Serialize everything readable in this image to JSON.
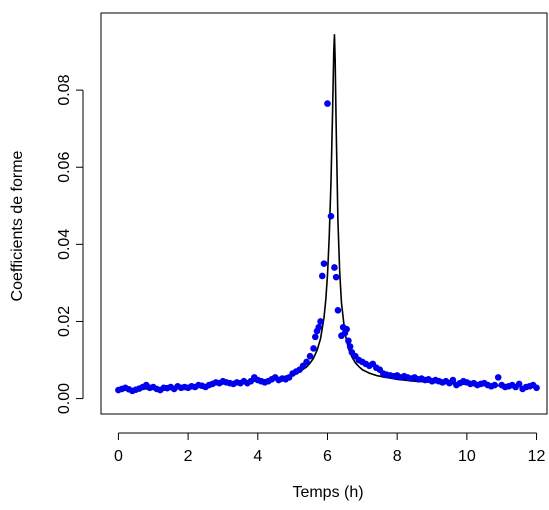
{
  "chart_data": {
    "type": "scatter",
    "title": "",
    "xlabel": "Temps (h)",
    "ylabel": "Coefficients de forme",
    "xlim": [
      -0.5,
      12.3
    ],
    "ylim": [
      -0.004,
      0.1
    ],
    "xticks": [
      0,
      2,
      4,
      6,
      8,
      10,
      12
    ],
    "xtick_labels": [
      "0",
      "2",
      "4",
      "6",
      "8",
      "10",
      "12"
    ],
    "yticks": [
      0.0,
      0.02,
      0.04,
      0.06,
      0.08
    ],
    "ytick_labels": [
      "0.00",
      "0.02",
      "0.04",
      "0.06",
      "0.08"
    ],
    "grid": false,
    "legend": "none",
    "colors": {
      "points": "#0000ee",
      "curve": "#000000",
      "axes": "#000000"
    },
    "series": [
      {
        "kind": "points",
        "x": [
          0.0,
          0.1,
          0.2,
          0.3,
          0.4,
          0.5,
          0.6,
          0.7,
          0.8,
          0.9,
          1.0,
          1.1,
          1.2,
          1.3,
          1.4,
          1.5,
          1.6,
          1.7,
          1.8,
          1.9,
          2.0,
          2.1,
          2.2,
          2.3,
          2.4,
          2.5,
          2.6,
          2.7,
          2.8,
          2.9,
          3.0,
          3.1,
          3.2,
          3.3,
          3.4,
          3.5,
          3.6,
          3.7,
          3.8,
          3.9,
          4.0,
          4.1,
          4.2,
          4.3,
          4.4,
          4.5,
          4.6,
          4.7,
          4.8,
          4.9,
          5.0,
          5.1,
          5.2,
          5.3,
          5.4,
          5.5,
          5.6,
          5.65,
          5.7,
          5.75,
          5.8,
          5.85,
          5.9,
          6.0,
          6.1,
          6.2,
          6.25,
          6.3,
          6.4,
          6.45,
          6.5,
          6.55,
          6.6,
          6.65,
          6.7,
          6.8,
          6.9,
          7.0,
          7.1,
          7.2,
          7.3,
          7.4,
          7.5,
          7.6,
          7.7,
          7.8,
          7.9,
          8.0,
          8.1,
          8.2,
          8.3,
          8.4,
          8.5,
          8.6,
          8.7,
          8.8,
          8.9,
          9.0,
          9.1,
          9.2,
          9.3,
          9.4,
          9.5,
          9.6,
          9.7,
          9.8,
          9.9,
          10.0,
          10.1,
          10.2,
          10.3,
          10.4,
          10.5,
          10.6,
          10.7,
          10.8,
          10.9,
          11.0,
          11.1,
          11.2,
          11.3,
          11.4,
          11.5,
          11.6,
          11.7,
          11.8,
          11.9,
          12.0
        ],
        "y": [
          0.0022,
          0.0025,
          0.0028,
          0.0024,
          0.002,
          0.0023,
          0.0026,
          0.003,
          0.0035,
          0.0028,
          0.003,
          0.0025,
          0.0022,
          0.0028,
          0.0027,
          0.003,
          0.0025,
          0.0032,
          0.0028,
          0.003,
          0.0028,
          0.0032,
          0.003,
          0.0035,
          0.0033,
          0.003,
          0.0035,
          0.0038,
          0.0042,
          0.004,
          0.0045,
          0.0042,
          0.004,
          0.0038,
          0.0042,
          0.004,
          0.0045,
          0.004,
          0.0045,
          0.0055,
          0.0048,
          0.0045,
          0.0042,
          0.0045,
          0.005,
          0.0055,
          0.0048,
          0.0052,
          0.005,
          0.0055,
          0.0065,
          0.007,
          0.0075,
          0.0085,
          0.0095,
          0.011,
          0.013,
          0.016,
          0.0175,
          0.0185,
          0.02,
          0.0318,
          0.035,
          0.0765,
          0.0473,
          0.034,
          0.0315,
          0.0229,
          0.0163,
          0.0185,
          0.017,
          0.018,
          0.015,
          0.0135,
          0.012,
          0.011,
          0.01,
          0.0095,
          0.009,
          0.0085,
          0.009,
          0.008,
          0.0075,
          0.0065,
          0.0062,
          0.006,
          0.0058,
          0.006,
          0.0055,
          0.0058,
          0.0055,
          0.0052,
          0.0055,
          0.005,
          0.0052,
          0.0048,
          0.005,
          0.0045,
          0.0048,
          0.0045,
          0.0042,
          0.0045,
          0.004,
          0.0048,
          0.0035,
          0.004,
          0.0045,
          0.0042,
          0.0038,
          0.004,
          0.0035,
          0.0038,
          0.004,
          0.0035,
          0.0032,
          0.0035,
          0.0055,
          0.0035,
          0.003,
          0.0032,
          0.0035,
          0.003,
          0.0038,
          0.0025,
          0.003,
          0.0032,
          0.0035,
          0.0028
        ]
      },
      {
        "kind": "line",
        "x": [
          0.0,
          0.5,
          1.0,
          1.5,
          2.0,
          2.5,
          3.0,
          3.5,
          4.0,
          4.5,
          5.0,
          5.2,
          5.4,
          5.5,
          5.6,
          5.7,
          5.8,
          5.9,
          5.95,
          6.0,
          6.05,
          6.1,
          6.15,
          6.18,
          6.2,
          6.22,
          6.25,
          6.3,
          6.35,
          6.4,
          6.5,
          6.6,
          6.7,
          6.8,
          6.9,
          7.0,
          7.2,
          7.4,
          7.6,
          7.8,
          8.0,
          8.5,
          9.0,
          9.5,
          10.0,
          10.5,
          11.0,
          11.5,
          12.0
        ],
        "y": [
          0.0022,
          0.0024,
          0.0026,
          0.0028,
          0.0031,
          0.0034,
          0.0038,
          0.0042,
          0.0046,
          0.0052,
          0.0062,
          0.007,
          0.0082,
          0.0092,
          0.0105,
          0.0125,
          0.0155,
          0.021,
          0.0255,
          0.032,
          0.042,
          0.056,
          0.076,
          0.09,
          0.0945,
          0.088,
          0.07,
          0.046,
          0.033,
          0.025,
          0.017,
          0.013,
          0.0108,
          0.0093,
          0.0083,
          0.0075,
          0.0066,
          0.006,
          0.0056,
          0.0053,
          0.005,
          0.0045,
          0.0042,
          0.0039,
          0.0037,
          0.0035,
          0.0033,
          0.0031,
          0.003
        ]
      }
    ]
  }
}
